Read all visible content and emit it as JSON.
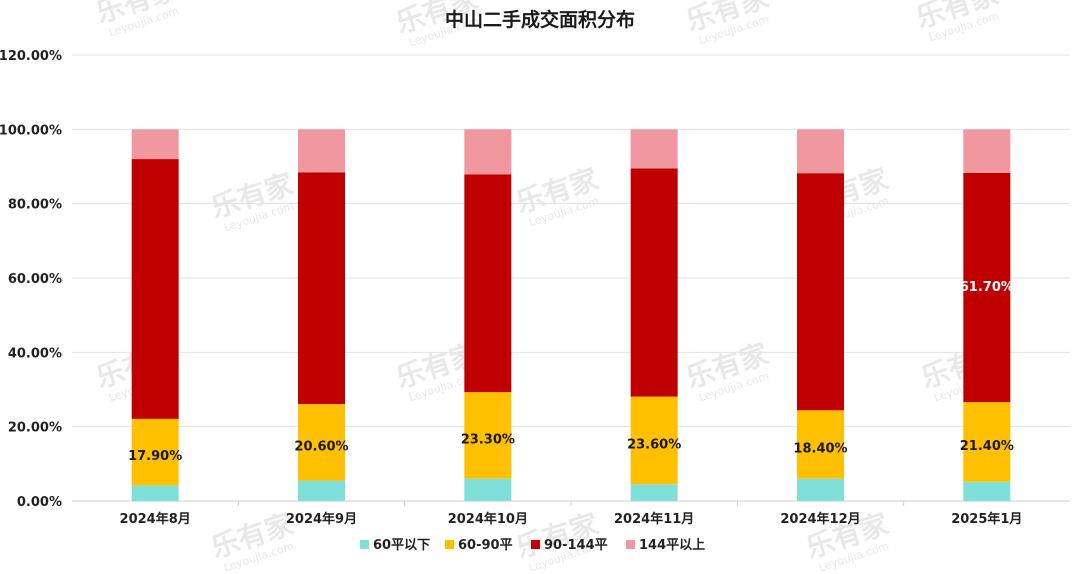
{
  "chart_data": {
    "type": "bar",
    "stacked": true,
    "title": "中山二手成交面积分布",
    "categories": [
      "2024年8月",
      "2024年9月",
      "2024年10月",
      "2024年11月",
      "2024年12月",
      "2025年1月"
    ],
    "series": [
      {
        "name": "60平以下",
        "color": "#7fdfd9",
        "values": [
          4.2,
          5.5,
          6.0,
          4.5,
          6.0,
          5.2
        ]
      },
      {
        "name": "60-90平",
        "color": "#ffc000",
        "values": [
          17.9,
          20.6,
          23.3,
          23.6,
          18.4,
          21.4
        ]
      },
      {
        "name": "90-144平",
        "color": "#c00000",
        "values": [
          69.9,
          62.3,
          58.6,
          61.4,
          63.8,
          61.7
        ]
      },
      {
        "name": "144平以上",
        "color": "#f0979f",
        "values": [
          8.0,
          11.6,
          12.1,
          10.5,
          11.8,
          11.7
        ]
      }
    ],
    "data_labels": [
      {
        "series": 1,
        "category": 0,
        "text": "17.90%"
      },
      {
        "series": 1,
        "category": 1,
        "text": "20.60%"
      },
      {
        "series": 1,
        "category": 2,
        "text": "23.30%"
      },
      {
        "series": 1,
        "category": 3,
        "text": "23.60%"
      },
      {
        "series": 1,
        "category": 4,
        "text": "18.40%"
      },
      {
        "series": 1,
        "category": 5,
        "text": "21.40%"
      },
      {
        "series": 2,
        "category": 5,
        "text": "61.70%"
      }
    ],
    "ylim": [
      0,
      120
    ],
    "yticks": [
      "0.00%",
      "20.00%",
      "40.00%",
      "60.00%",
      "80.00%",
      "100.00%",
      "120.00%"
    ],
    "grid": true,
    "legend_position": "bottom"
  },
  "watermark": {
    "brand": "乐有家",
    "domain": "Leyoujia.com"
  }
}
